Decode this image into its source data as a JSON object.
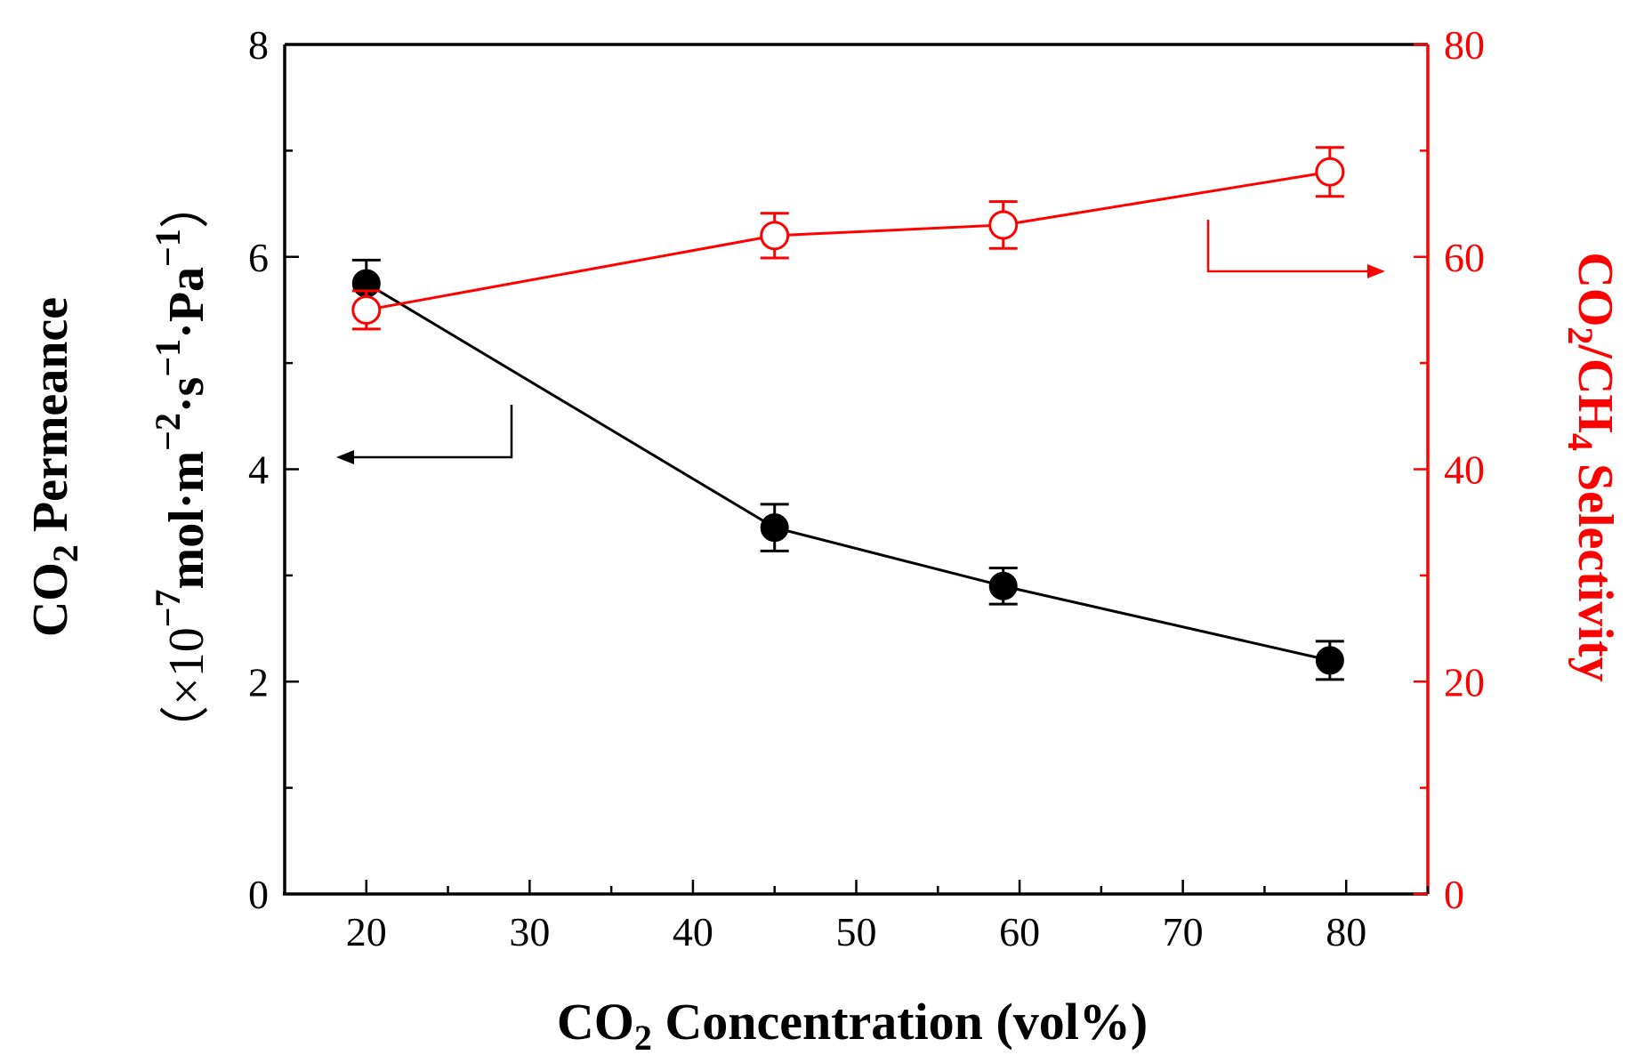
{
  "chart_data": {
    "type": "line",
    "x": [
      20,
      45,
      59,
      79
    ],
    "x_tick_labels": [
      "20",
      "30",
      "40",
      "50",
      "60",
      "70",
      "80"
    ],
    "left_tick_labels": [
      "0",
      "2",
      "4",
      "6",
      "8"
    ],
    "right_tick_labels": [
      "0",
      "20",
      "40",
      "60",
      "80"
    ],
    "xlim": [
      15,
      85
    ],
    "ylim_left": [
      0,
      8
    ],
    "ylim_right": [
      0,
      80
    ],
    "xlabel": {
      "pre": "CO",
      "sub": "2",
      "post": " Concentration (vol%)"
    },
    "ylabel_left": {
      "line1_pre": "CO",
      "line1_sub": "2",
      "line1_post": " Permeance",
      "line2_open": "（×10",
      "line2_exp1": "−7",
      "line2_mid1": "mol·m",
      "line2_exp2": "−2",
      "line2_mid2": "·s",
      "line2_exp3": "−1",
      "line2_mid3": "·Pa",
      "line2_exp4": "−1",
      "line2_close": "）"
    },
    "ylabel_right": {
      "a": "CO",
      "b": "2",
      "c": "/CH",
      "d": "4",
      "e": " Selectivity"
    },
    "series": [
      {
        "name": "CO2 Permeance",
        "axis": "left",
        "color": "#000000",
        "marker": "filled-circle",
        "values": [
          5.75,
          3.45,
          2.9,
          2.2
        ],
        "errors": [
          0.22,
          0.22,
          0.17,
          0.18
        ]
      },
      {
        "name": "CO2/CH4 Selectivity",
        "axis": "right",
        "color": "#ff0000",
        "marker": "open-circle",
        "values": [
          55,
          62,
          63,
          68
        ],
        "errors": [
          1.8,
          2.1,
          2.2,
          2.3
        ]
      }
    ]
  }
}
